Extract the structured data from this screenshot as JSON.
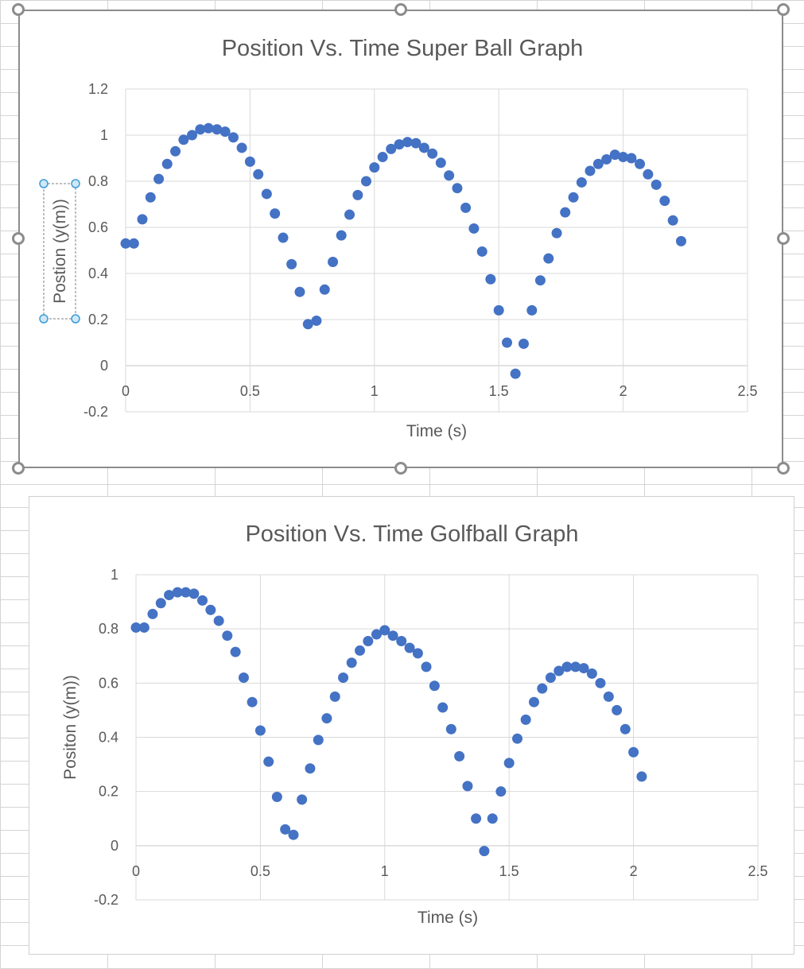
{
  "colors": {
    "marker": "#4472C4",
    "grid": "#d9d9d9",
    "text": "#595959"
  },
  "chart_data": [
    {
      "type": "scatter",
      "title": "Position Vs. Time Super Ball Graph",
      "xlabel": "Time (s)",
      "ylabel": "Postion (y(m))",
      "xlim": [
        0,
        2.5
      ],
      "ylim": [
        -0.2,
        1.2
      ],
      "x_ticks": [
        "0",
        "0.5",
        "1",
        "1.5",
        "2",
        "2.5"
      ],
      "y_ticks": [
        "-0.2",
        "0",
        "0.2",
        "0.4",
        "0.6",
        "0.8",
        "1",
        "1.2"
      ],
      "grid": true,
      "selected": true,
      "series": [
        {
          "x": [
            0.0,
            0.033,
            0.067,
            0.1,
            0.133,
            0.167,
            0.2,
            0.233,
            0.267,
            0.3,
            0.333,
            0.367,
            0.4,
            0.433,
            0.467,
            0.5,
            0.533,
            0.567,
            0.6,
            0.633,
            0.667,
            0.7,
            0.733,
            0.767,
            0.8,
            0.833,
            0.867,
            0.9,
            0.933,
            0.967,
            1.0,
            1.033,
            1.067,
            1.1,
            1.133,
            1.167,
            1.2,
            1.233,
            1.267,
            1.3,
            1.333,
            1.367,
            1.4,
            1.433,
            1.467,
            1.5,
            1.533,
            1.567,
            1.6,
            1.633,
            1.667,
            1.7,
            1.733,
            1.767,
            1.8,
            1.833,
            1.867,
            1.9,
            1.933,
            1.967,
            2.0,
            2.033,
            2.067,
            2.1,
            2.133,
            2.167,
            2.2,
            2.233
          ],
          "y": [
            0.53,
            0.53,
            0.635,
            0.73,
            0.81,
            0.875,
            0.93,
            0.98,
            1.0,
            1.025,
            1.03,
            1.025,
            1.015,
            0.99,
            0.945,
            0.885,
            0.83,
            0.745,
            0.66,
            0.555,
            0.44,
            0.32,
            0.18,
            0.195,
            0.33,
            0.45,
            0.565,
            0.655,
            0.74,
            0.8,
            0.86,
            0.905,
            0.94,
            0.96,
            0.97,
            0.965,
            0.945,
            0.92,
            0.88,
            0.825,
            0.77,
            0.685,
            0.595,
            0.495,
            0.375,
            0.24,
            0.1,
            -0.035,
            0.095,
            0.24,
            0.37,
            0.465,
            0.575,
            0.665,
            0.73,
            0.795,
            0.845,
            0.875,
            0.895,
            0.915,
            0.905,
            0.9,
            0.875,
            0.83,
            0.785,
            0.715,
            0.63,
            0.54
          ]
        }
      ]
    },
    {
      "type": "scatter",
      "title": "Position Vs. Time Golfball Graph",
      "xlabel": "Time (s)",
      "ylabel": "Positon (y(m))",
      "xlim": [
        0,
        2.5
      ],
      "ylim": [
        -0.2,
        1
      ],
      "x_ticks": [
        "0",
        "0.5",
        "1",
        "1.5",
        "2",
        "2.5"
      ],
      "y_ticks": [
        "-0.2",
        "0",
        "0.2",
        "0.4",
        "0.6",
        "0.8",
        "1"
      ],
      "grid": true,
      "selected": false,
      "series": [
        {
          "x": [
            0.0,
            0.033,
            0.067,
            0.1,
            0.133,
            0.167,
            0.2,
            0.233,
            0.267,
            0.3,
            0.333,
            0.367,
            0.4,
            0.433,
            0.467,
            0.5,
            0.533,
            0.567,
            0.6,
            0.633,
            0.667,
            0.7,
            0.733,
            0.767,
            0.8,
            0.833,
            0.867,
            0.9,
            0.933,
            0.967,
            1.0,
            1.033,
            1.067,
            1.1,
            1.133,
            1.167,
            1.2,
            1.233,
            1.267,
            1.3,
            1.333,
            1.367,
            1.4,
            1.433,
            1.467,
            1.5,
            1.533,
            1.567,
            1.6,
            1.633,
            1.667,
            1.7,
            1.733,
            1.767,
            1.8,
            1.833,
            1.867,
            1.9,
            1.933,
            1.967,
            2.0,
            2.033
          ],
          "y": [
            0.805,
            0.805,
            0.855,
            0.895,
            0.925,
            0.935,
            0.935,
            0.93,
            0.905,
            0.87,
            0.83,
            0.775,
            0.715,
            0.62,
            0.53,
            0.425,
            0.31,
            0.18,
            0.06,
            0.04,
            0.17,
            0.285,
            0.39,
            0.47,
            0.55,
            0.62,
            0.675,
            0.72,
            0.755,
            0.78,
            0.795,
            0.775,
            0.755,
            0.73,
            0.71,
            0.66,
            0.59,
            0.51,
            0.43,
            0.33,
            0.22,
            0.1,
            -0.02,
            0.1,
            0.2,
            0.305,
            0.395,
            0.465,
            0.53,
            0.58,
            0.62,
            0.645,
            0.66,
            0.66,
            0.655,
            0.635,
            0.6,
            0.55,
            0.5,
            0.43,
            0.345,
            0.255
          ]
        }
      ]
    }
  ]
}
